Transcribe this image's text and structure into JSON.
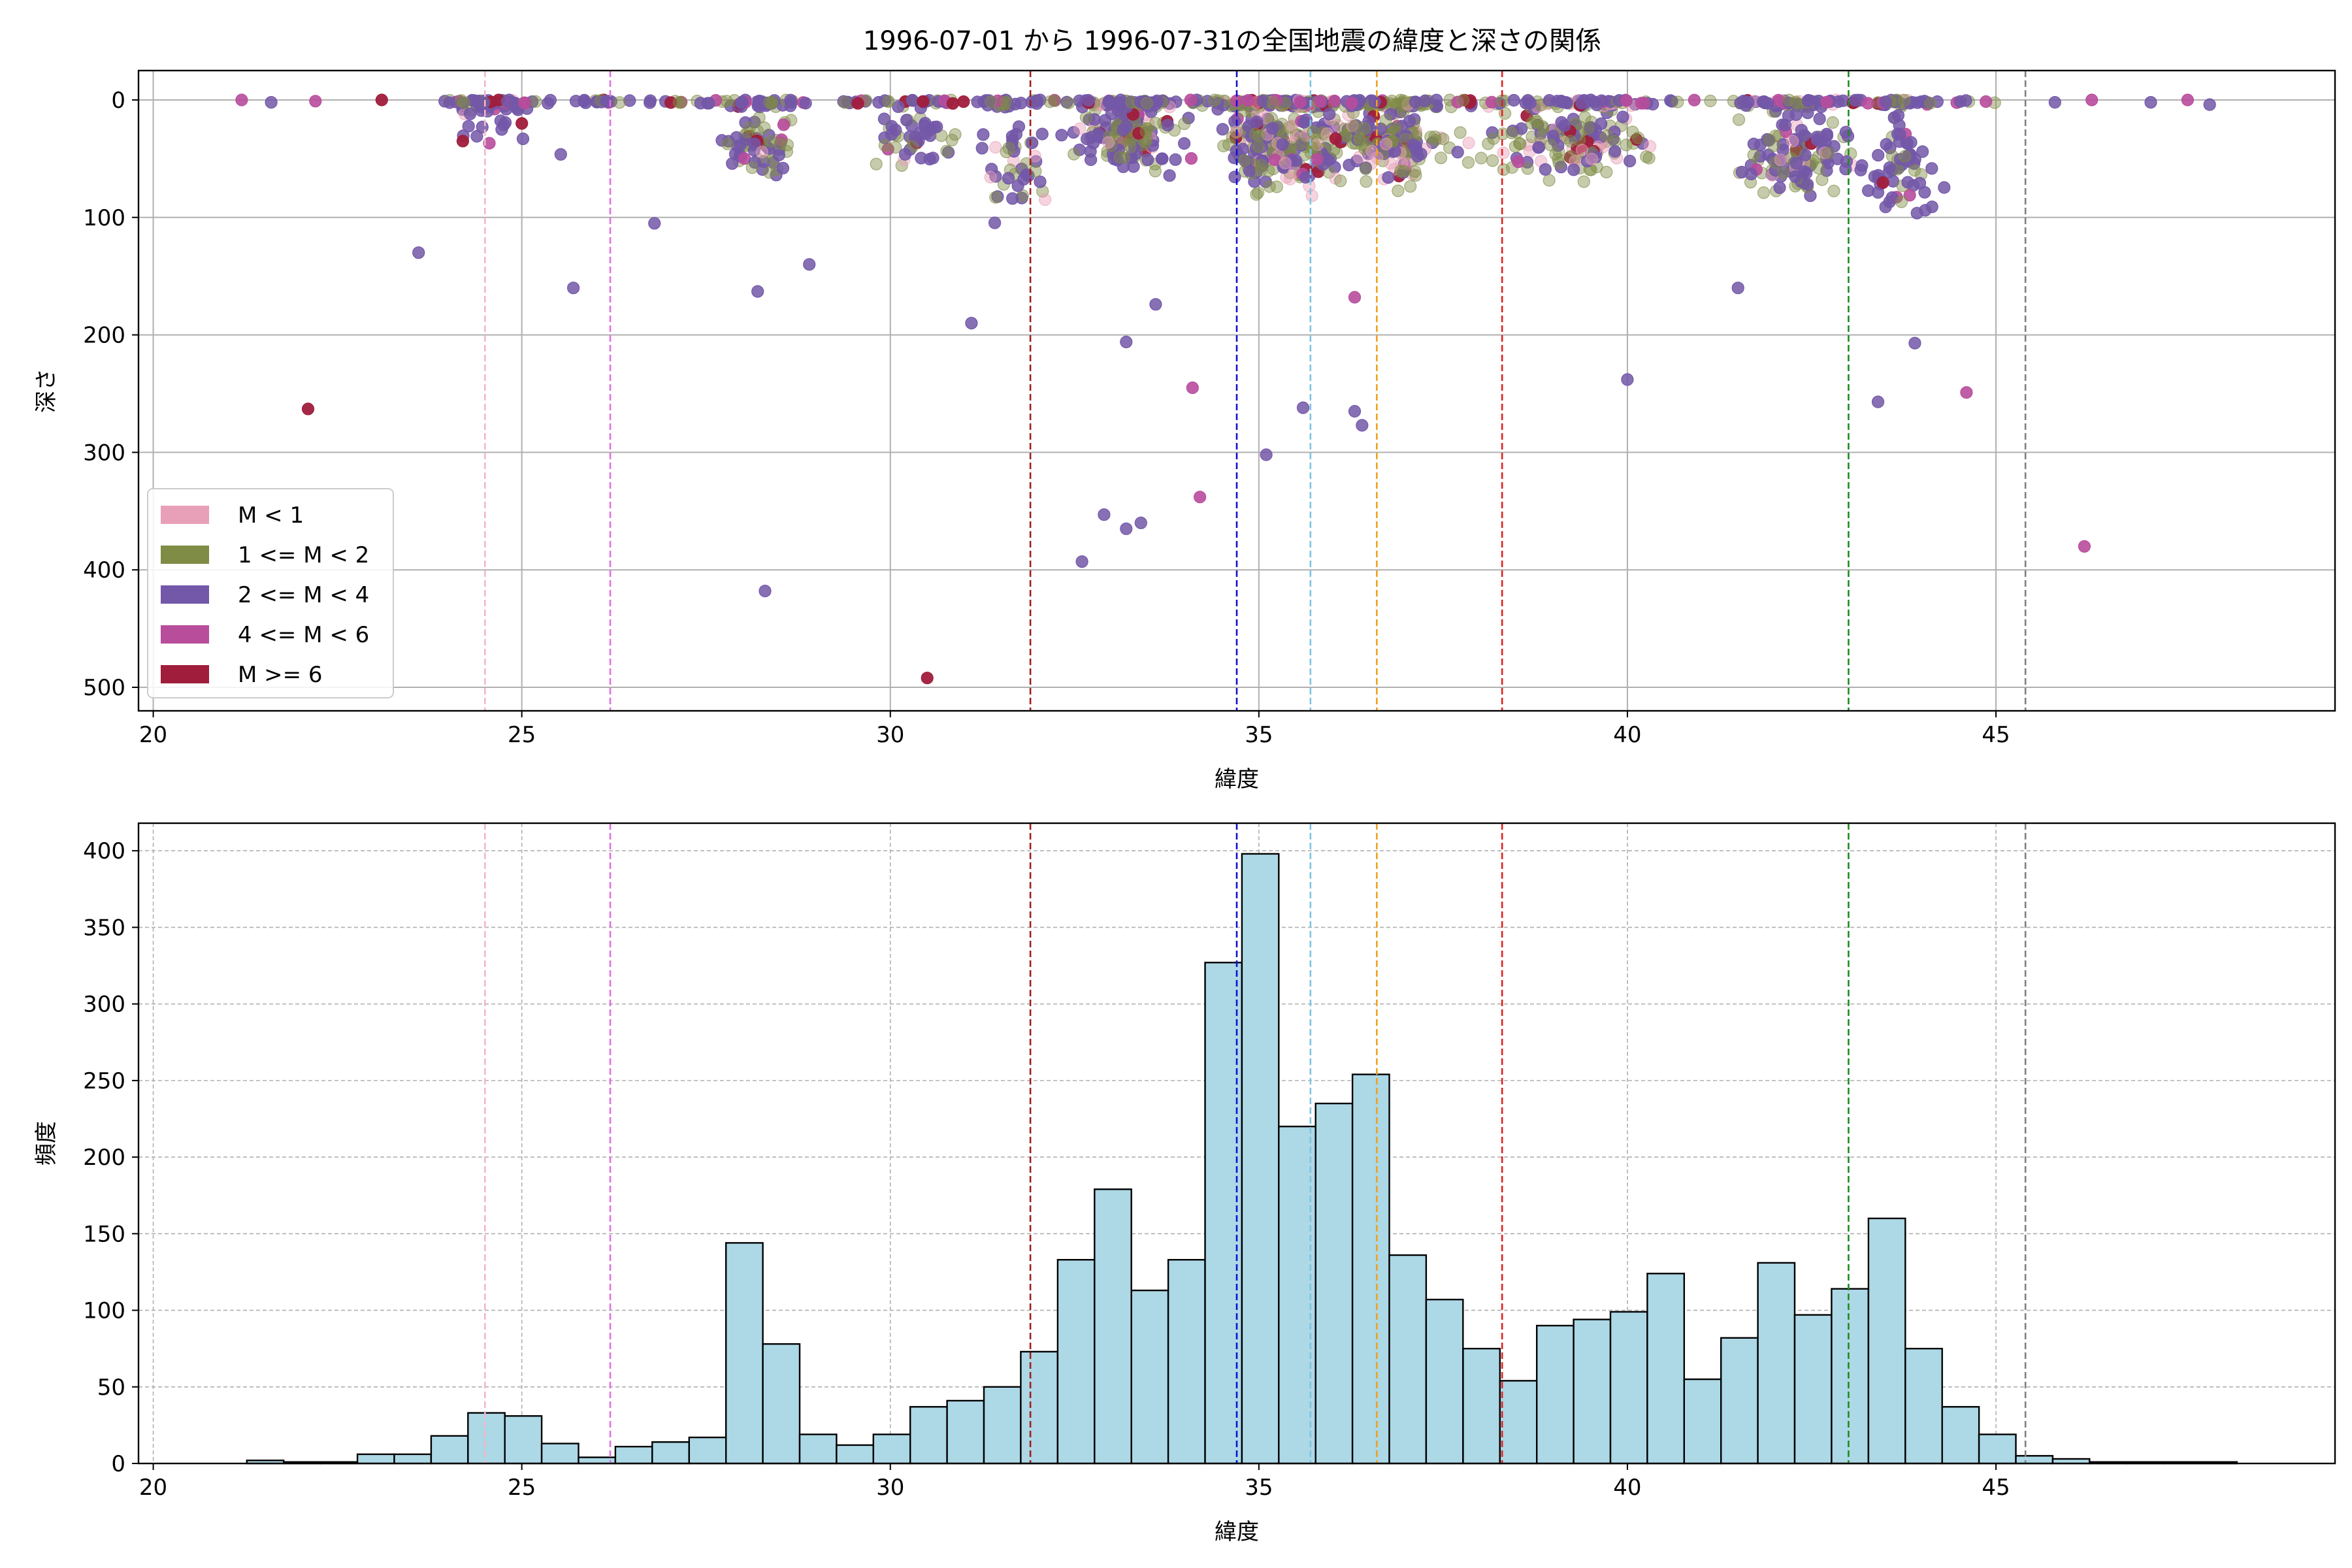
{
  "title": "1996-07-01 から 1996-07-31の全国地震の緯度と深さの関係",
  "colors": {
    "m_lt1": "#e8a0b8",
    "m_1_2": "#7f8c45",
    "m_2_4": "#7357a8",
    "m_4_6": "#b84d9c",
    "m_ge6": "#a01e3c",
    "hist_fill": "#add8e6",
    "grid": "#b0b0b0"
  },
  "chart_data": [
    {
      "type": "scatter",
      "xlabel": "緯度",
      "ylabel": "深さ",
      "xlim": [
        19.8,
        49.6
      ],
      "ylim": [
        520,
        -25
      ],
      "y_inverted": true,
      "xticks": [
        20,
        25,
        30,
        35,
        40,
        45
      ],
      "yticks": [
        0,
        100,
        200,
        300,
        400,
        500
      ],
      "grid": true,
      "legend_position": "lower-left",
      "legend": [
        {
          "label": "M < 1",
          "color": "#e8a0b8"
        },
        {
          "label": "1 <= M < 2",
          "color": "#7f8c45"
        },
        {
          "label": "2 <= M < 4",
          "color": "#7357a8"
        },
        {
          "label": "4 <= M < 6",
          "color": "#b84d9c"
        },
        {
          "label": "M >= 6",
          "color": "#a01e3c"
        }
      ],
      "vlines": [
        {
          "x": 24.5,
          "color": "#f4b6c8"
        },
        {
          "x": 26.2,
          "color": "#e070e0"
        },
        {
          "x": 31.9,
          "color": "#a01e1e"
        },
        {
          "x": 34.7,
          "color": "#1010d0"
        },
        {
          "x": 35.7,
          "color": "#7ec4e0"
        },
        {
          "x": 36.6,
          "color": "#f0a020"
        },
        {
          "x": 38.3,
          "color": "#e02020"
        },
        {
          "x": 43.0,
          "color": "#1e8c1e"
        },
        {
          "x": 45.4,
          "color": "#808080"
        }
      ],
      "notable_points": [
        {
          "x": 21.2,
          "y": 0,
          "cls": "m_4_6"
        },
        {
          "x": 21.6,
          "y": 2,
          "cls": "m_2_4"
        },
        {
          "x": 22.2,
          "y": 1,
          "cls": "m_4_6"
        },
        {
          "x": 22.1,
          "y": 263,
          "cls": "m_ge6"
        },
        {
          "x": 23.1,
          "y": 0,
          "cls": "m_ge6"
        },
        {
          "x": 23.6,
          "y": 130,
          "cls": "m_2_4"
        },
        {
          "x": 24.2,
          "y": 35,
          "cls": "m_ge6"
        },
        {
          "x": 25.0,
          "y": 20,
          "cls": "m_ge6"
        },
        {
          "x": 25.7,
          "y": 160,
          "cls": "m_2_4"
        },
        {
          "x": 26.8,
          "y": 105,
          "cls": "m_2_4"
        },
        {
          "x": 28.2,
          "y": 163,
          "cls": "m_2_4"
        },
        {
          "x": 28.9,
          "y": 140,
          "cls": "m_2_4"
        },
        {
          "x": 28.3,
          "y": 418,
          "cls": "m_2_4"
        },
        {
          "x": 30.5,
          "y": 492,
          "cls": "m_ge6"
        },
        {
          "x": 31.1,
          "y": 190,
          "cls": "m_2_4"
        },
        {
          "x": 32.6,
          "y": 393,
          "cls": "m_2_4"
        },
        {
          "x": 32.9,
          "y": 353,
          "cls": "m_2_4"
        },
        {
          "x": 33.2,
          "y": 365,
          "cls": "m_2_4"
        },
        {
          "x": 33.4,
          "y": 360,
          "cls": "m_2_4"
        },
        {
          "x": 33.2,
          "y": 206,
          "cls": "m_2_4"
        },
        {
          "x": 33.6,
          "y": 174,
          "cls": "m_2_4"
        },
        {
          "x": 34.1,
          "y": 245,
          "cls": "m_4_6"
        },
        {
          "x": 34.2,
          "y": 338,
          "cls": "m_4_6"
        },
        {
          "x": 35.1,
          "y": 302,
          "cls": "m_2_4"
        },
        {
          "x": 35.6,
          "y": 262,
          "cls": "m_2_4"
        },
        {
          "x": 36.3,
          "y": 265,
          "cls": "m_2_4"
        },
        {
          "x": 36.4,
          "y": 277,
          "cls": "m_2_4"
        },
        {
          "x": 36.3,
          "y": 168,
          "cls": "m_4_6"
        },
        {
          "x": 40.0,
          "y": 238,
          "cls": "m_2_4"
        },
        {
          "x": 41.5,
          "y": 160,
          "cls": "m_2_4"
        },
        {
          "x": 43.4,
          "y": 257,
          "cls": "m_2_4"
        },
        {
          "x": 43.9,
          "y": 207,
          "cls": "m_2_4"
        },
        {
          "x": 44.6,
          "y": 249,
          "cls": "m_4_6"
        },
        {
          "x": 46.2,
          "y": 380,
          "cls": "m_4_6"
        },
        {
          "x": 45.8,
          "y": 2,
          "cls": "m_2_4"
        },
        {
          "x": 46.3,
          "y": 0,
          "cls": "m_4_6"
        },
        {
          "x": 47.1,
          "y": 2,
          "cls": "m_2_4"
        },
        {
          "x": 47.6,
          "y": 0,
          "cls": "m_4_6"
        },
        {
          "x": 47.9,
          "y": 4,
          "cls": "m_2_4"
        }
      ]
    },
    {
      "type": "bar",
      "xlabel": "緯度",
      "ylabel": "頻度",
      "xlim": [
        19.8,
        49.6
      ],
      "ylim": [
        0,
        418
      ],
      "xticks": [
        20,
        25,
        30,
        35,
        40,
        45
      ],
      "yticks": [
        0,
        50,
        100,
        150,
        200,
        250,
        300,
        350,
        400
      ],
      "grid": true,
      "bin_start": 21.27,
      "bin_width": 0.5,
      "values": [
        2,
        1,
        1,
        6,
        6,
        18,
        33,
        31,
        13,
        4,
        11,
        14,
        17,
        144,
        78,
        19,
        12,
        19,
        37,
        41,
        50,
        73,
        133,
        179,
        113,
        133,
        327,
        398,
        220,
        235,
        254,
        136,
        107,
        75,
        54,
        90,
        94,
        99,
        124,
        55,
        82,
        131,
        97,
        114,
        160,
        75,
        37,
        19,
        5,
        3,
        1,
        1,
        1,
        1
      ],
      "vlines": [
        {
          "x": 24.5,
          "color": "#f4b6c8"
        },
        {
          "x": 26.2,
          "color": "#e070e0"
        },
        {
          "x": 31.9,
          "color": "#a01e1e"
        },
        {
          "x": 34.7,
          "color": "#1010d0"
        },
        {
          "x": 35.7,
          "color": "#7ec4e0"
        },
        {
          "x": 36.6,
          "color": "#f0a020"
        },
        {
          "x": 38.3,
          "color": "#e02020"
        },
        {
          "x": 43.0,
          "color": "#1e8c1e"
        },
        {
          "x": 45.4,
          "color": "#808080"
        }
      ]
    }
  ]
}
